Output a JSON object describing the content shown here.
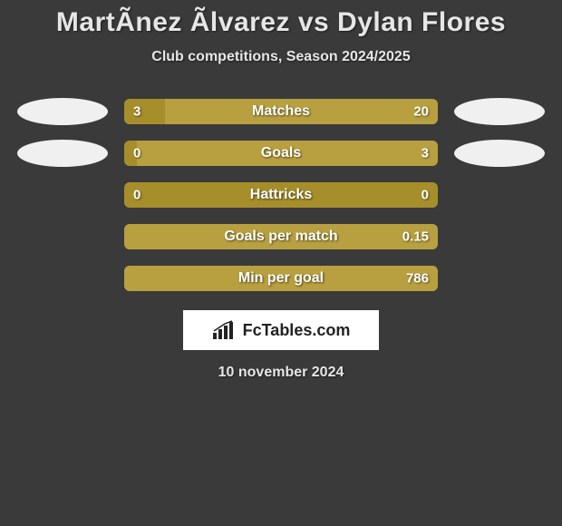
{
  "title": "MartÃnez Ãlvarez vs Dylan Flores",
  "subtitle": "Club competitions, Season 2024/2025",
  "footer_date": "10 november 2024",
  "logo_text": "FcTables.com",
  "colors": {
    "background": "#3a3a3a",
    "bar_track": "#5a5a5a",
    "bar_left": "#a68f2a",
    "bar_right": "#b8a040",
    "oval": "#f0f0f0",
    "text": "#e6e6e6"
  },
  "rows": [
    {
      "label": "Matches",
      "left_value": "3",
      "right_value": "20",
      "left_pct": 13,
      "right_pct": 87,
      "show_left_oval": true,
      "show_right_oval": true
    },
    {
      "label": "Goals",
      "left_value": "0",
      "right_value": "3",
      "left_pct": 4,
      "right_pct": 96,
      "show_left_oval": true,
      "show_right_oval": true
    },
    {
      "label": "Hattricks",
      "left_value": "0",
      "right_value": "0",
      "left_pct": 100,
      "right_pct": 0,
      "show_left_oval": false,
      "show_right_oval": false
    },
    {
      "label": "Goals per match",
      "left_value": "",
      "right_value": "0.15",
      "left_pct": 0,
      "right_pct": 100,
      "show_left_oval": false,
      "show_right_oval": false
    },
    {
      "label": "Min per goal",
      "left_value": "",
      "right_value": "786",
      "left_pct": 0,
      "right_pct": 100,
      "show_left_oval": false,
      "show_right_oval": false
    }
  ]
}
